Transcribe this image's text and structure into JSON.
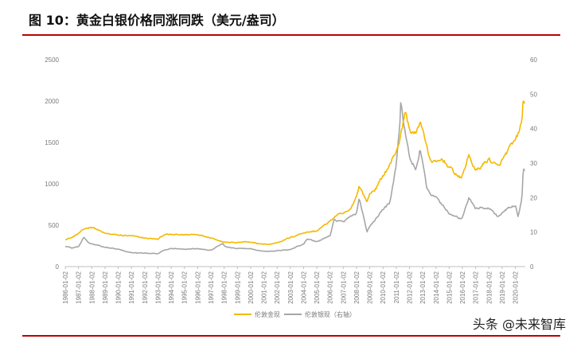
{
  "figure": {
    "title": "图 10：黄金白银价格同涨同跌（美元/盎司）",
    "watermark": "头条 @未来智库"
  },
  "chart_data": {
    "type": "line",
    "title": "",
    "x_type": "date",
    "x_ticks": [
      "1986-01-02",
      "1987-01-02",
      "1988-01-02",
      "1989-01-02",
      "1990-01-02",
      "1991-01-02",
      "1992-01-02",
      "1993-01-02",
      "1994-01-02",
      "1995-01-02",
      "1996-01-02",
      "1997-01-02",
      "1998-01-02",
      "1999-01-02",
      "2000-01-02",
      "2001-01-02",
      "2002-01-02",
      "2003-01-02",
      "2004-01-02",
      "2005-01-02",
      "2006-01-02",
      "2007-01-02",
      "2008-01-02",
      "2009-01-02",
      "2010-01-02",
      "2011-01-02",
      "2012-01-02",
      "2013-01-02",
      "2014-01-02",
      "2015-01-02",
      "2016-01-02",
      "2017-01-02",
      "2018-01-02",
      "2019-01-02",
      "2020-01-02"
    ],
    "y_left": {
      "lim": [
        0,
        2500
      ],
      "ticks": [
        0,
        500,
        1000,
        1500,
        2000,
        2500
      ]
    },
    "y_right": {
      "lim": [
        0,
        60
      ],
      "ticks": [
        0,
        10,
        20,
        30,
        40,
        50,
        60
      ]
    },
    "grid": false,
    "legend_position": "bottom",
    "series": [
      {
        "name": "伦敦金现",
        "axis": "left",
        "color": "#f5b800",
        "x": [
          1986.0,
          1986.5,
          1987.0,
          1987.5,
          1988.0,
          1988.5,
          1989.0,
          1990.0,
          1991.0,
          1992.0,
          1993.0,
          1993.5,
          1994.0,
          1995.0,
          1996.0,
          1997.0,
          1998.0,
          1999.0,
          1999.7,
          2000.0,
          2001.0,
          2001.5,
          2002.0,
          2003.0,
          2004.0,
          2005.0,
          2006.0,
          2006.5,
          2007.0,
          2007.5,
          2008.0,
          2008.2,
          2008.8,
          2009.0,
          2009.5,
          2010.0,
          2010.5,
          2011.0,
          2011.3,
          2011.7,
          2012.0,
          2012.5,
          2012.8,
          2013.0,
          2013.3,
          2013.5,
          2014.0,
          2014.5,
          2015.0,
          2015.9,
          2016.0,
          2016.5,
          2017.0,
          2018.0,
          2018.7,
          2019.0,
          2019.5,
          2020.0,
          2020.2,
          2020.5,
          2020.6,
          2020.7
        ],
        "y": [
          330,
          350,
          400,
          460,
          480,
          440,
          400,
          380,
          370,
          345,
          330,
          390,
          385,
          385,
          390,
          350,
          295,
          290,
          300,
          290,
          270,
          270,
          290,
          350,
          410,
          430,
          550,
          620,
          640,
          680,
          850,
          980,
          780,
          880,
          950,
          1100,
          1220,
          1400,
          1550,
          1880,
          1650,
          1600,
          1750,
          1680,
          1450,
          1300,
          1250,
          1300,
          1200,
          1060,
          1100,
          1350,
          1150,
          1300,
          1200,
          1280,
          1420,
          1520,
          1600,
          1750,
          2050,
          1950
        ]
      },
      {
        "name": "伦敦银现（右轴）",
        "axis": "right",
        "color": "#a6a6a6",
        "x": [
          1986.0,
          1986.5,
          1987.0,
          1987.4,
          1987.8,
          1988.0,
          1989.0,
          1990.0,
          1991.0,
          1992.0,
          1993.0,
          1993.5,
          1994.0,
          1995.0,
          1996.0,
          1997.0,
          1997.9,
          1998.0,
          1998.5,
          1999.0,
          2000.0,
          2001.0,
          2002.0,
          2003.0,
          2004.0,
          2004.3,
          2005.0,
          2006.0,
          2006.3,
          2007.0,
          2008.0,
          2008.2,
          2008.8,
          2009.0,
          2009.5,
          2010.0,
          2010.5,
          2011.0,
          2011.3,
          2011.35,
          2011.7,
          2012.0,
          2012.5,
          2012.8,
          2013.0,
          2013.3,
          2013.5,
          2014.0,
          2015.0,
          2015.9,
          2016.0,
          2016.5,
          2017.0,
          2018.0,
          2018.7,
          2019.0,
          2019.5,
          2020.0,
          2020.2,
          2020.5,
          2020.6,
          2020.7
        ],
        "y": [
          5.9,
          5.4,
          5.8,
          8.5,
          6.8,
          6.6,
          5.6,
          5.0,
          4.0,
          3.9,
          3.8,
          4.8,
          5.2,
          5.1,
          5.2,
          4.8,
          6.8,
          6.0,
          5.4,
          5.3,
          5.2,
          4.4,
          4.6,
          4.9,
          6.6,
          8.0,
          7.2,
          9.0,
          13.5,
          13.0,
          15.5,
          20.0,
          10.0,
          11.5,
          14.0,
          16.5,
          18.5,
          29.5,
          42.0,
          48.0,
          38.0,
          32.0,
          28.0,
          34.0,
          30.0,
          23.0,
          21.0,
          20.0,
          15.5,
          13.8,
          14.0,
          20.0,
          17.0,
          17.0,
          14.5,
          15.5,
          17.0,
          17.8,
          14.5,
          20.0,
          28.5,
          28.0
        ]
      }
    ]
  }
}
